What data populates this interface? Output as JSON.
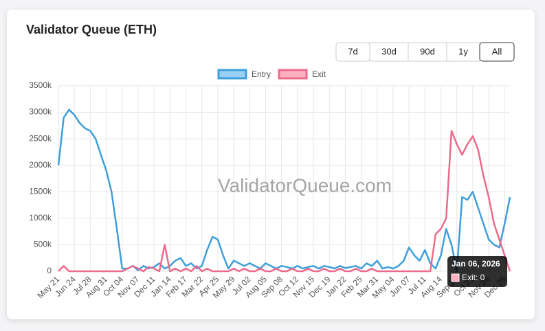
{
  "chart_data": {
    "type": "line",
    "title": "Validator Queue (ETH)",
    "range_buttons": [
      "7d",
      "30d",
      "90d",
      "1y",
      "All"
    ],
    "active_button": "All",
    "watermark": "ValidatorQueue.com",
    "tooltip": {
      "title": "Jan 06, 2026",
      "body": "Exit: 0"
    },
    "categories": [
      "May 21",
      null,
      null,
      "Jun 24",
      null,
      null,
      "Jul 28",
      null,
      null,
      "Aug 31",
      null,
      null,
      "Oct 04",
      null,
      null,
      "Nov 07",
      null,
      null,
      "Dec 11",
      null,
      null,
      "Jan 14",
      null,
      null,
      "Feb 17",
      null,
      null,
      "Mar 22",
      null,
      null,
      "Apr 25",
      null,
      null,
      "May 29",
      null,
      null,
      "Jul 02",
      null,
      null,
      "Aug 05",
      null,
      null,
      "Sep 08",
      null,
      null,
      "Oct 12",
      null,
      null,
      "Nov 15",
      null,
      null,
      "Dec 19",
      null,
      null,
      "Jan 22",
      null,
      null,
      "Feb 25",
      null,
      null,
      "Mar 31",
      null,
      null,
      "May 04",
      null,
      null,
      "Jun 07",
      null,
      null,
      "Jul 11",
      null,
      null,
      "Aug 14",
      null,
      null,
      "Sep 17",
      null,
      null,
      "Oct 21",
      null,
      null,
      "Nov 24",
      null,
      null,
      "Dec 28",
      null
    ],
    "series": [
      {
        "name": "Entry",
        "color": "#3d9fdb",
        "fill": "#9ad0f5",
        "values": [
          2000,
          2900,
          3050,
          2950,
          2800,
          2700,
          2650,
          2500,
          2200,
          1900,
          1500,
          800,
          50,
          50,
          100,
          20,
          100,
          50,
          80,
          150,
          50,
          100,
          200,
          250,
          100,
          150,
          50,
          100,
          400,
          650,
          600,
          300,
          50,
          200,
          150,
          100,
          150,
          100,
          50,
          150,
          100,
          50,
          100,
          80,
          50,
          100,
          50,
          80,
          100,
          50,
          100,
          80,
          50,
          100,
          60,
          80,
          100,
          50,
          150,
          100,
          200,
          50,
          80,
          50,
          100,
          200,
          450,
          300,
          200,
          400,
          150,
          50,
          300,
          800,
          500,
          0,
          1400,
          1350,
          1500,
          1200,
          900,
          600,
          500,
          450,
          900,
          1400
        ]
      },
      {
        "name": "Exit",
        "color": "#ec6a8c",
        "fill": "#ffb1c1",
        "values": [
          0,
          100,
          0,
          0,
          0,
          0,
          0,
          0,
          0,
          0,
          0,
          0,
          0,
          50,
          100,
          50,
          0,
          80,
          50,
          0,
          500,
          0,
          50,
          0,
          50,
          0,
          100,
          0,
          50,
          0,
          0,
          0,
          0,
          50,
          0,
          50,
          0,
          0,
          50,
          0,
          0,
          50,
          0,
          0,
          50,
          0,
          0,
          50,
          0,
          0,
          50,
          0,
          0,
          50,
          0,
          0,
          50,
          0,
          0,
          50,
          0,
          0,
          0,
          0,
          0,
          0,
          0,
          0,
          0,
          0,
          0,
          700,
          800,
          1000,
          2650,
          2400,
          2200,
          2400,
          2550,
          2300,
          1800,
          1400,
          900,
          600,
          300,
          0
        ]
      }
    ],
    "ylim": [
      0,
      3500000
    ],
    "value_scale": 1000,
    "yticks": [
      {
        "value": 0,
        "label": "0"
      },
      {
        "value": 500000,
        "label": "500k"
      },
      {
        "value": 1000000,
        "label": "1000k"
      },
      {
        "value": 1500000,
        "label": "1500k"
      },
      {
        "value": 2000000,
        "label": "2000k"
      },
      {
        "value": 2500000,
        "label": "2500k"
      },
      {
        "value": 3000000,
        "label": "3000k"
      },
      {
        "value": 3500000,
        "label": "3500k"
      }
    ],
    "grid": true
  }
}
